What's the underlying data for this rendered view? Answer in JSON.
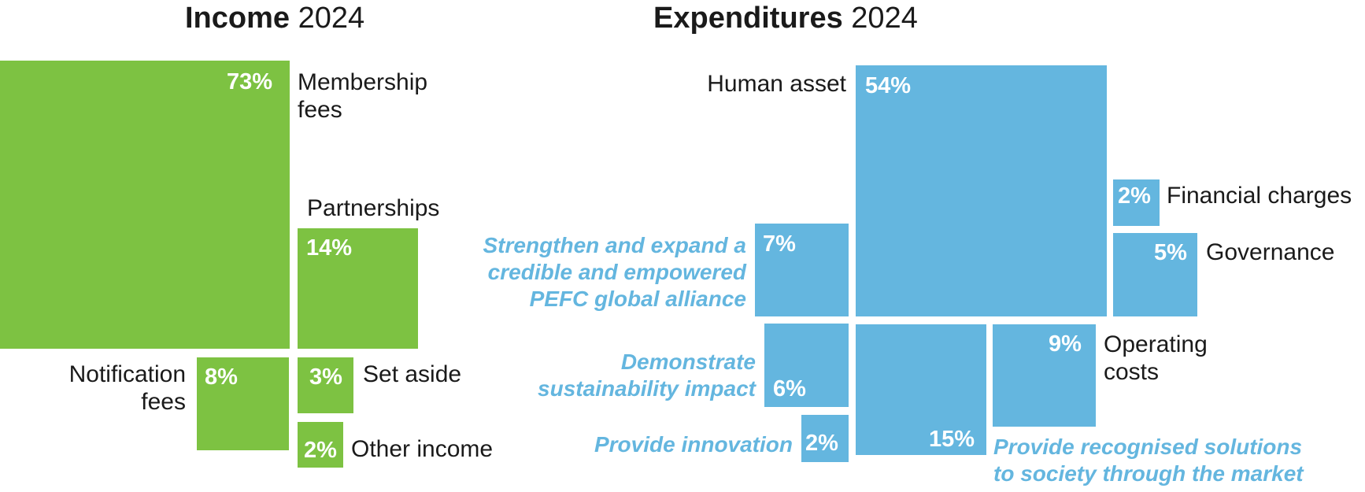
{
  "colors": {
    "income": "#7dc242",
    "expenditure": "#64b6df",
    "text": "#1a1a1a"
  },
  "chart_data": [
    {
      "type": "treemap",
      "title": "Income",
      "title_year": "2024",
      "items": [
        {
          "label_lines": [
            "Membership",
            "fees"
          ],
          "value": 73,
          "pct_label": "73%"
        },
        {
          "label_lines": [
            "Partnerships"
          ],
          "value": 14,
          "pct_label": "14%"
        },
        {
          "label_lines": [
            "Notification",
            "fees"
          ],
          "value": 8,
          "pct_label": "8%"
        },
        {
          "label_lines": [
            "Set aside"
          ],
          "value": 3,
          "pct_label": "3%"
        },
        {
          "label_lines": [
            "Other income"
          ],
          "value": 2,
          "pct_label": "2%"
        }
      ]
    },
    {
      "type": "treemap",
      "title": "Expenditures",
      "title_year": "2024",
      "items": [
        {
          "label_lines": [
            "Human asset"
          ],
          "value": 54,
          "pct_label": "54%",
          "group": ""
        },
        {
          "label_lines": [
            "Financial charges"
          ],
          "value": 2,
          "pct_label": "2%",
          "group": ""
        },
        {
          "label_lines": [
            "Governance"
          ],
          "value": 5,
          "pct_label": "5%",
          "group": ""
        },
        {
          "label_lines": [
            "Operating",
            "costs"
          ],
          "value": 9,
          "pct_label": "9%",
          "group": ""
        },
        {
          "label_lines": [
            "Strengthen and expand a",
            "credible and empowered",
            "PEFC global alliance"
          ],
          "value": 7,
          "pct_label": "7%",
          "group": "strategic"
        },
        {
          "label_lines": [
            "Demonstrate",
            "sustainability impact"
          ],
          "value": 6,
          "pct_label": "6%",
          "group": "strategic"
        },
        {
          "label_lines": [
            "Provide innovation"
          ],
          "value": 2,
          "pct_label": "2%",
          "group": "strategic"
        },
        {
          "label_lines": [
            "Provide recognised solutions",
            "to society through the market"
          ],
          "value": 15,
          "pct_label": "15%",
          "group": "strategic"
        }
      ]
    }
  ]
}
